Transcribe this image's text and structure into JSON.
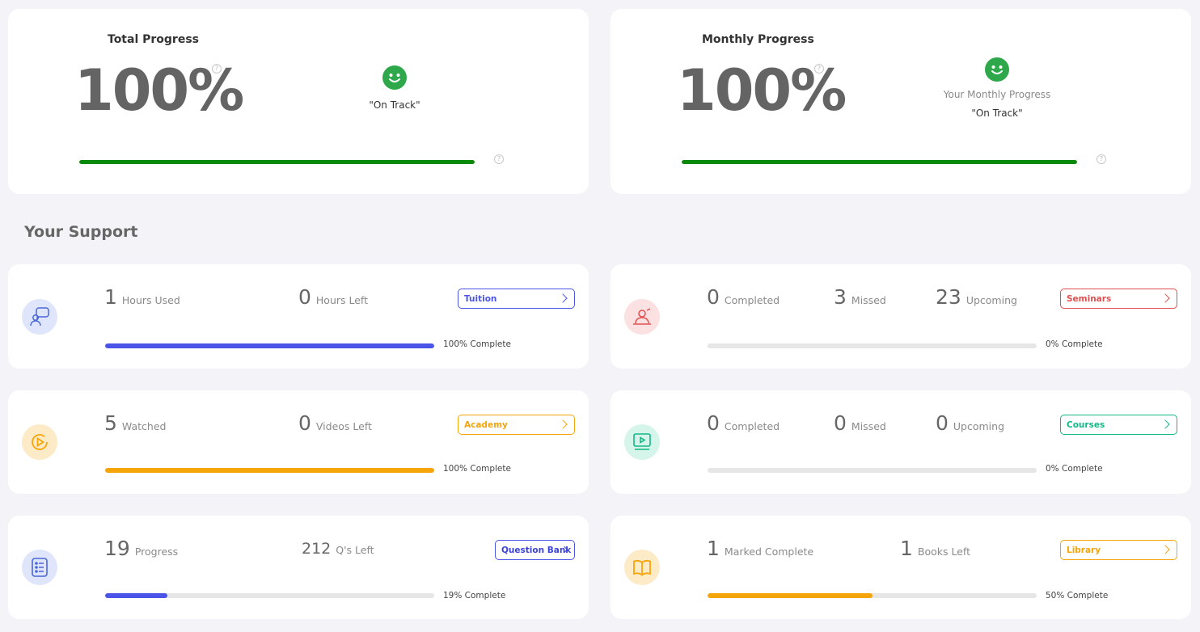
{
  "total_progress": {
    "title": "Total Progress",
    "percent_text": "100%",
    "value": 1.0,
    "status": "\"On Track\"",
    "color": "#0a8a0a"
  },
  "monthly_progress": {
    "title": "Monthly Progress",
    "percent_text": "100%",
    "value": 1.0,
    "status_label": "Your Monthly Progress",
    "status": "\"On Track\"",
    "color": "#0a8a0a"
  },
  "help_glyph": "?",
  "support_title": "Your Support",
  "support": {
    "tuition": {
      "icon": "chat-person-icon",
      "stat1": {
        "num": "1",
        "label": "Hours Used"
      },
      "stat2": {
        "num": "0",
        "label": "Hours Left"
      },
      "button": "Tuition",
      "progress": 1.0,
      "complete": "100% Complete",
      "color": "#4a55e8"
    },
    "seminars": {
      "icon": "presenter-icon",
      "stat1": {
        "num": "0",
        "label": "Completed"
      },
      "stat2": {
        "num": "3",
        "label": "Missed"
      },
      "stat3": {
        "num": "23",
        "label": "Upcoming"
      },
      "button": "Seminars",
      "progress": 0.0,
      "complete": "0% Complete",
      "color": "#e05050"
    },
    "academy": {
      "icon": "play-circle-icon",
      "stat1": {
        "num": "5",
        "label": "Watched"
      },
      "stat2": {
        "num": "0",
        "label": "Videos Left"
      },
      "button": "Academy",
      "progress": 1.0,
      "complete": "100% Complete",
      "color": "#f5a50a"
    },
    "courses": {
      "icon": "video-monitor-icon",
      "stat1": {
        "num": "0",
        "label": "Completed"
      },
      "stat2": {
        "num": "0",
        "label": "Missed"
      },
      "stat3": {
        "num": "0",
        "label": "Upcoming"
      },
      "button": "Courses",
      "progress": 0.0,
      "complete": "0% Complete",
      "color": "#12b886"
    },
    "question_bank": {
      "icon": "list-icon",
      "stat1": {
        "num": "19",
        "label": "Progress"
      },
      "stat2": {
        "num": "212",
        "label": "Q's Left"
      },
      "button": "Question Bank",
      "progress": 0.19,
      "complete": "19% Complete",
      "color": "#4a55e8"
    },
    "library": {
      "icon": "book-icon",
      "stat1": {
        "num": "1",
        "label": "Marked Complete"
      },
      "stat2": {
        "num": "1",
        "label": "Books Left"
      },
      "button": "Library",
      "progress": 0.5,
      "complete": "50% Complete",
      "color": "#f5a50a"
    }
  }
}
